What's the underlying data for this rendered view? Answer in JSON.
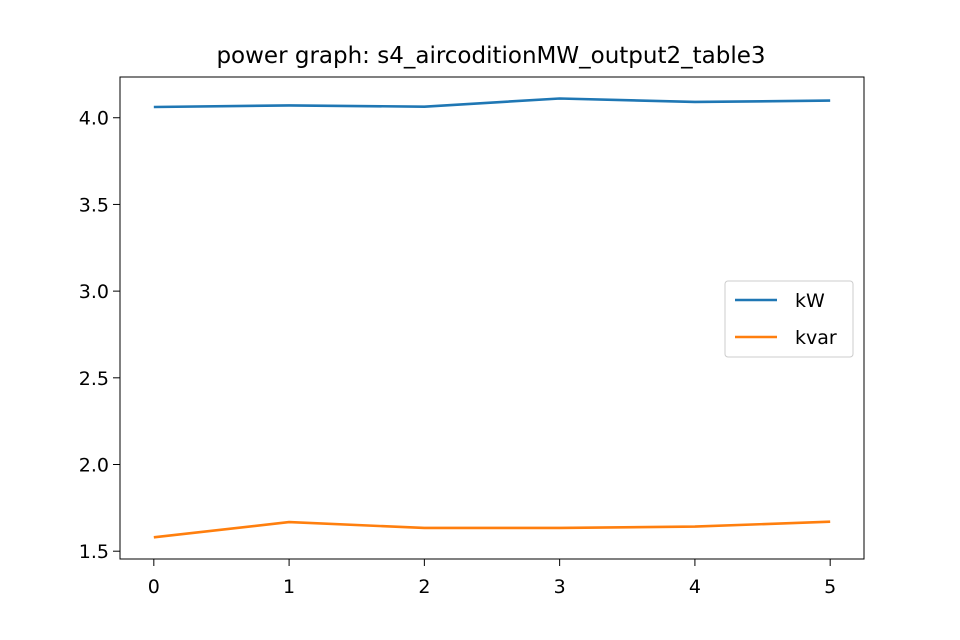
{
  "chart_data": {
    "type": "line",
    "title": "power graph: s4_aircoditionMW_output2_table3",
    "xlabel": "",
    "ylabel": "",
    "x": [
      0,
      1,
      2,
      3,
      4,
      5
    ],
    "xticks": [
      0,
      1,
      2,
      3,
      4,
      5
    ],
    "yticks": [
      1.5,
      2.0,
      2.5,
      3.0,
      3.5,
      4.0
    ],
    "ytick_labels": [
      "1.5",
      "2.0",
      "2.5",
      "3.0",
      "3.5",
      "4.0"
    ],
    "xlim": [
      -0.25,
      5.25
    ],
    "ylim": [
      1.455,
      4.235
    ],
    "grid": false,
    "legend": "center-right",
    "series": [
      {
        "name": "kW",
        "color": "#1f77b4",
        "values": [
          4.062,
          4.071,
          4.064,
          4.111,
          4.091,
          4.099
        ]
      },
      {
        "name": "kvar",
        "color": "#ff7f0e",
        "values": [
          1.58,
          1.668,
          1.634,
          1.634,
          1.642,
          1.67
        ]
      }
    ]
  }
}
